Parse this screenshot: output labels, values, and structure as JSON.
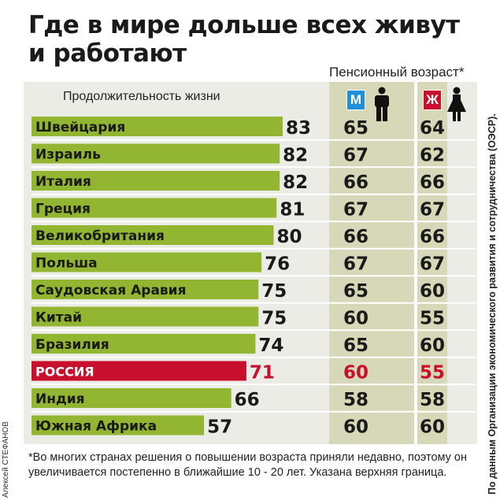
{
  "chart_data": {
    "type": "table",
    "title": "Где в мире дольше всех живут и работают",
    "life_expectancy_label": "Продолжительность жизни",
    "pension_header": "Пенсионный возраст*",
    "gender_labels": {
      "male": "М",
      "female": "Ж"
    },
    "categories": [
      "Швейцария",
      "Израиль",
      "Италия",
      "Греция",
      "Великобритания",
      "Польша",
      "Саудовская Аравия",
      "Китай",
      "Бразилия",
      "РОССИЯ",
      "Индия",
      "Южная Африка"
    ],
    "series": [
      {
        "values": [
          83,
          82,
          82,
          81,
          80,
          76,
          75,
          75,
          74,
          71,
          66,
          57
        ]
      },
      {
        "name": "М",
        "values": [
          65,
          67,
          66,
          67,
          66,
          67,
          65,
          60,
          65,
          60,
          58,
          60
        ]
      },
      {
        "name": "Ж",
        "values": [
          64,
          62,
          66,
          67,
          66,
          67,
          60,
          55,
          60,
          55,
          58,
          60
        ]
      }
    ],
    "highlight_category": "РОССИЯ",
    "xlim": [
      0,
      83
    ]
  },
  "colors": {
    "bar": "#93b632",
    "highlight": "#c8102e",
    "panel": "#ecece6",
    "pension_column": "#d6d8b8",
    "male": "#1e8fd8",
    "female": "#c8102e",
    "text": "#1a1a1a"
  },
  "icons": {
    "male": "male-person-icon",
    "female": "female-person-icon"
  },
  "footnote": "*Во многих странах решения о повышении возраста приняли недавно, поэтому он увеличивается постепенно в ближайшие 10 - 20 лет. Указана верхняя граница.",
  "source": "По данным Организации экономического развития и сотрудничества (ОЭСР).",
  "author": "Алексей СТЕФАНОВ"
}
